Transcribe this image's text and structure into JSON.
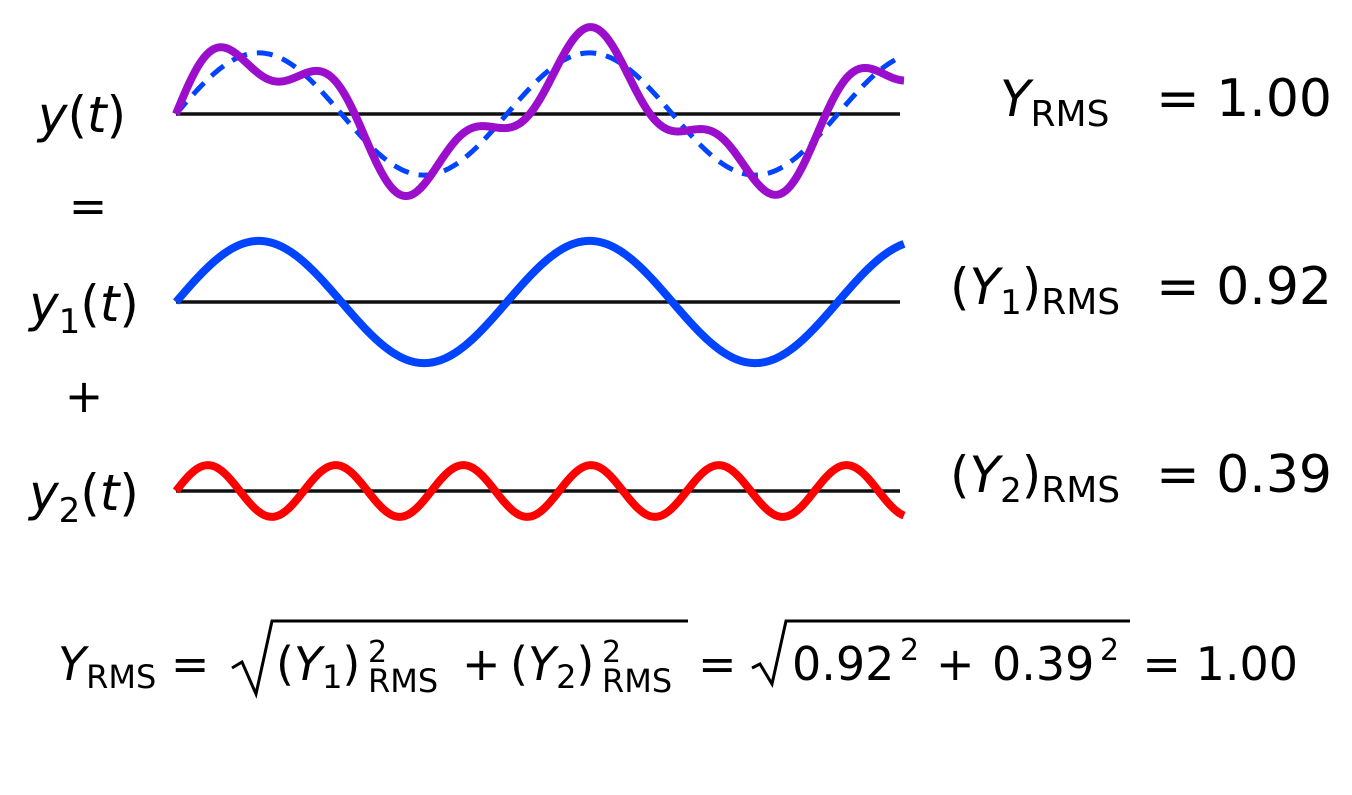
{
  "colors": {
    "sum": "#9b0fcc",
    "component1": "#0044ff",
    "component2": "#ff0000",
    "baseline": "#111111"
  },
  "labels": {
    "y": "y",
    "y1_base": "y",
    "y1_sub": "1",
    "y2_base": "y",
    "y2_sub": "2",
    "t": "t",
    "equals": "=",
    "plus": "+"
  },
  "rms": {
    "Y_symbol": "Y",
    "rms_sub": "RMS",
    "sub1": "1",
    "sub2": "2",
    "total_value": "1.00",
    "y1_value": "0.92",
    "y2_value": "0.39"
  },
  "formula": {
    "a": "0.92",
    "b": "0.39",
    "exp": "2",
    "result": "1.00"
  },
  "chart_data": {
    "type": "line",
    "x_range": [
      0,
      1
    ],
    "series": [
      {
        "amplitude": 1.3,
        "cycles": 2.2,
        "style": "solid"
      },
      {
        "amplitude": 0.55,
        "cycles": 5.7,
        "style": "solid"
      },
      {
        "style": "solid",
        "composition": "component1 + component2"
      },
      {
        "style": "dashed",
        "composition": "component1"
      }
    ]
  }
}
